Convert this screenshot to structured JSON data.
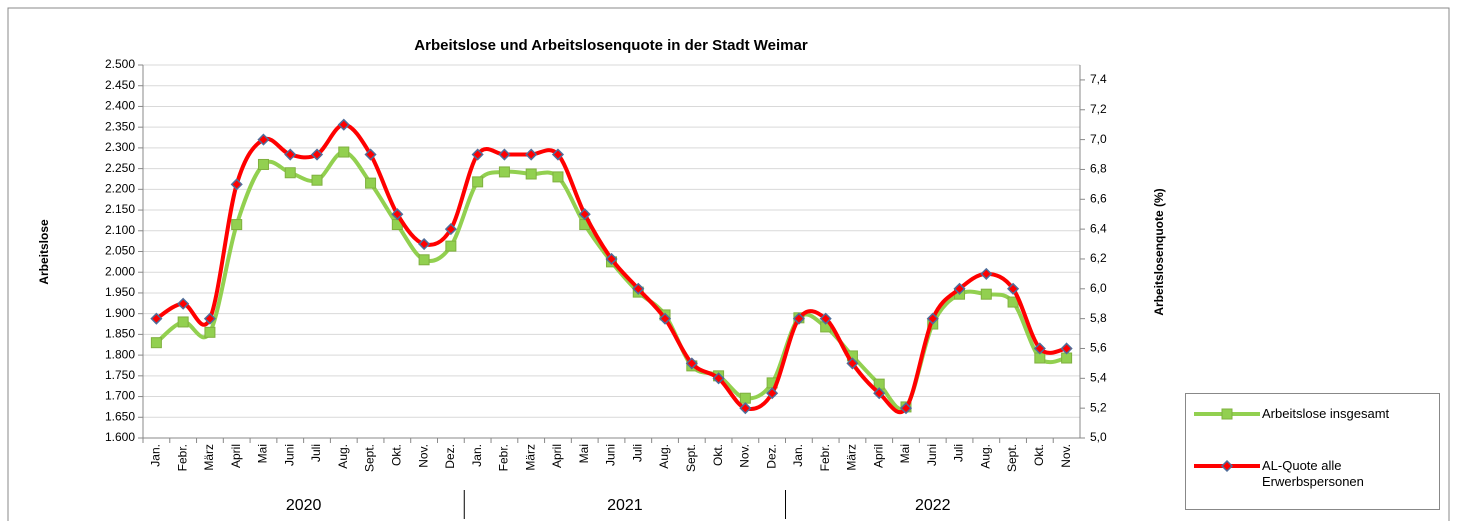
{
  "chart_data": {
    "type": "line",
    "title": "Arbeitslose und Arbeitslosenquote in der Stadt Weimar",
    "y_label": "Arbeitslose",
    "y2_label": "Arbeitslosenquote (%)",
    "categories": [
      "Jan.",
      "Febr.",
      "März",
      "April",
      "Mai",
      "Juni",
      "Juli",
      "Aug.",
      "Sept.",
      "Okt.",
      "Nov.",
      "Dez.",
      "Jan.",
      "Febr.",
      "März",
      "April",
      "Mai",
      "Juni",
      "Juli",
      "Aug.",
      "Sept.",
      "Okt.",
      "Nov.",
      "Dez.",
      "Jan.",
      "Febr.",
      "März",
      "April",
      "Mai",
      "Juni",
      "Juli",
      "Aug.",
      "Sept.",
      "Okt.",
      "Nov."
    ],
    "year_groups": [
      "2020",
      "2021",
      "2022"
    ],
    "series": [
      {
        "name": "Arbeitslose insgesamt",
        "color": "#92d050",
        "axis": "y",
        "values": [
          1830,
          1880,
          1855,
          2115,
          2260,
          2240,
          2222,
          2290,
          2215,
          2115,
          2030,
          2063,
          2218,
          2242,
          2237,
          2230,
          2115,
          2025,
          1952,
          1897,
          1774,
          1750,
          1696,
          1733,
          1890,
          1868,
          1798,
          1730,
          1675,
          1875,
          1947,
          1947,
          1928,
          1793,
          1793
        ]
      },
      {
        "name": "AL-Quote alle Erwerbspersonen",
        "color": "#ff0000",
        "axis": "y2",
        "values": [
          5.8,
          5.9,
          5.8,
          6.7,
          7.0,
          6.9,
          6.9,
          7.1,
          6.9,
          6.5,
          6.3,
          6.4,
          6.9,
          6.9,
          6.9,
          6.9,
          6.5,
          6.2,
          6.0,
          5.8,
          5.5,
          5.4,
          5.2,
          5.3,
          5.8,
          5.8,
          5.5,
          5.3,
          5.2,
          5.8,
          6.0,
          6.1,
          6.0,
          5.6,
          5.6
        ]
      }
    ],
    "ylim": [
      1600,
      2500
    ],
    "yticks": [
      {
        "value": 1600,
        "label": "1.600"
      },
      {
        "value": 1650,
        "label": "1.650"
      },
      {
        "value": 1700,
        "label": "1.700"
      },
      {
        "value": 1750,
        "label": "1.750"
      },
      {
        "value": 1800,
        "label": "1.800"
      },
      {
        "value": 1850,
        "label": "1.850"
      },
      {
        "value": 1900,
        "label": "1.900"
      },
      {
        "value": 1950,
        "label": "1.950"
      },
      {
        "value": 2000,
        "label": "2.000"
      },
      {
        "value": 2050,
        "label": "2.050"
      },
      {
        "value": 2100,
        "label": "2.100"
      },
      {
        "value": 2150,
        "label": "2.150"
      },
      {
        "value": 2200,
        "label": "2.200"
      },
      {
        "value": 2250,
        "label": "2.250"
      },
      {
        "value": 2300,
        "label": "2.300"
      },
      {
        "value": 2350,
        "label": "2.350"
      },
      {
        "value": 2400,
        "label": "2.400"
      },
      {
        "value": 2450,
        "label": "2.450"
      },
      {
        "value": 2500,
        "label": "2.500"
      }
    ],
    "y2lim": [
      5.0,
      7.5
    ],
    "y2ticks": [
      {
        "value": 5.0,
        "label": "5,0"
      },
      {
        "value": 5.2,
        "label": "5,2"
      },
      {
        "value": 5.4,
        "label": "5,4"
      },
      {
        "value": 5.6,
        "label": "5,6"
      },
      {
        "value": 5.8,
        "label": "5,8"
      },
      {
        "value": 6.0,
        "label": "6,0"
      },
      {
        "value": 6.2,
        "label": "6,2"
      },
      {
        "value": 6.4,
        "label": "6,4"
      },
      {
        "value": 6.6,
        "label": "6,6"
      },
      {
        "value": 6.8,
        "label": "6,8"
      },
      {
        "value": 7.0,
        "label": "7,0"
      },
      {
        "value": 7.2,
        "label": "7,2"
      },
      {
        "value": 7.4,
        "label": "7,4"
      }
    ],
    "grid": true,
    "legend": "bottom-right"
  }
}
